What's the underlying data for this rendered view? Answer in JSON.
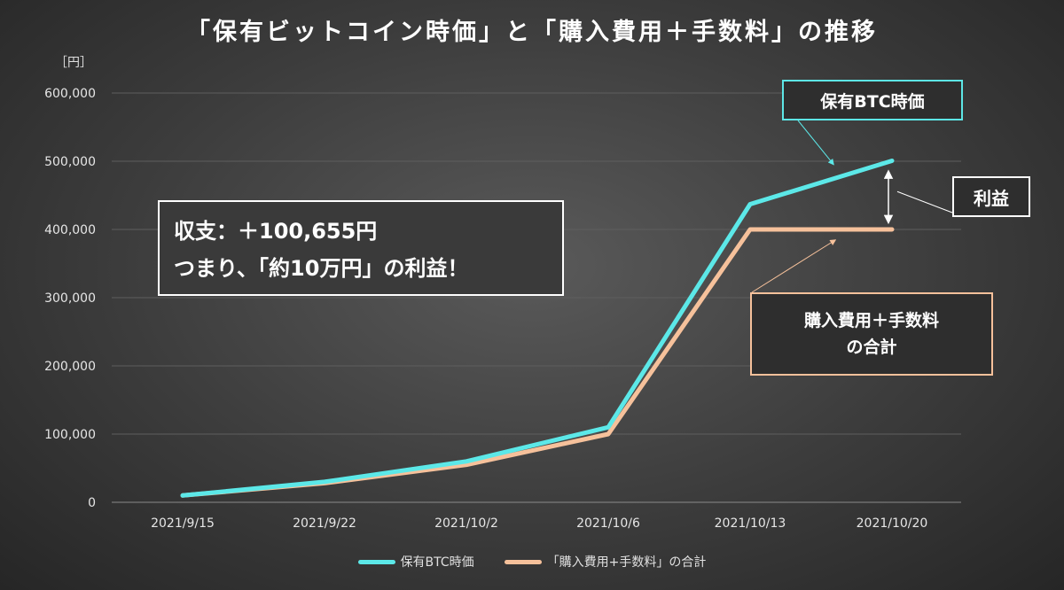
{
  "chart_data": {
    "type": "line",
    "title": "「保有ビットコイン時価」と「購入費用＋手数料」の推移",
    "y_unit": "［円］",
    "categories": [
      "2021/9/15",
      "2021/9/22",
      "2021/10/2",
      "2021/10/6",
      "2021/10/13",
      "2021/10/20"
    ],
    "ylim": [
      0,
      600000
    ],
    "yticks": [
      "0",
      "100,000",
      "200,000",
      "300,000",
      "400,000",
      "500,000",
      "600,000"
    ],
    "ytick_values": [
      0,
      100000,
      200000,
      300000,
      400000,
      500000,
      600000
    ],
    "grid": true,
    "legend_position": "bottom",
    "series": [
      {
        "name": "保有BTC時価",
        "color": "#5ce8e8",
        "values": [
          10000,
          30000,
          60000,
          110000,
          437000,
          500655
        ]
      },
      {
        "name": "「購入費用+手数料」の合計",
        "color": "#f6c19b",
        "values": [
          10000,
          28000,
          55000,
          100000,
          400000,
          400000
        ]
      }
    ],
    "annotations": {
      "summary_line1": "収支：＋100,655円",
      "summary_line2": "つまり、「約10万円」の利益！",
      "btc_label": "保有BTC時価",
      "profit_label": "利益",
      "cost_label_line1": "購入費用＋手数料",
      "cost_label_line2": "の合計"
    }
  }
}
